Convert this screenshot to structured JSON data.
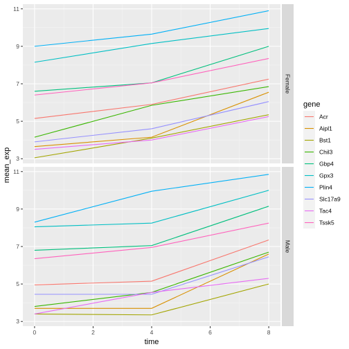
{
  "chart_data": {
    "type": "line",
    "xlabel": "time",
    "ylabel": "mean_exp",
    "xlim": [
      -0.4,
      8.4
    ],
    "ylim": [
      2.75,
      11.25
    ],
    "x_ticks": [
      0,
      2,
      4,
      6,
      8
    ],
    "y_ticks": [
      3,
      5,
      7,
      9,
      11
    ],
    "grid": true,
    "legend": {
      "title": "gene",
      "position": "right"
    },
    "series_colors": {
      "Acr": "#F8766D",
      "Aipl1": "#D89000",
      "Bst1": "#A3A500",
      "Chil3": "#39B600",
      "Gbp4": "#00BF7D",
      "Gpx3": "#00BFC4",
      "Plin4": "#00B0F6",
      "Slc17a9": "#9590FF",
      "Tac4": "#E76BF3",
      "Tssk5": "#FF62BC"
    },
    "facets": [
      {
        "label": "Female",
        "x": [
          0,
          4,
          8
        ],
        "series": [
          {
            "name": "Acr",
            "values": [
              5.15,
              5.9,
              7.25
            ]
          },
          {
            "name": "Aipl1",
            "values": [
              3.65,
              4.15,
              6.55
            ]
          },
          {
            "name": "Bst1",
            "values": [
              3.05,
              4.1,
              5.35
            ]
          },
          {
            "name": "Chil3",
            "values": [
              4.15,
              5.85,
              6.85
            ]
          },
          {
            "name": "Gbp4",
            "values": [
              6.6,
              7.05,
              9.0
            ]
          },
          {
            "name": "Gpx3",
            "values": [
              8.15,
              9.15,
              9.95
            ]
          },
          {
            "name": "Plin4",
            "values": [
              9.0,
              9.65,
              10.9
            ]
          },
          {
            "name": "Slc17a9",
            "values": [
              3.9,
              4.6,
              6.05
            ]
          },
          {
            "name": "Tac4",
            "values": [
              3.5,
              4.0,
              5.25
            ]
          },
          {
            "name": "Tssk5",
            "values": [
              6.4,
              7.05,
              8.35
            ]
          }
        ]
      },
      {
        "label": "Male",
        "x": [
          0,
          4,
          8
        ],
        "series": [
          {
            "name": "Acr",
            "values": [
              4.95,
              5.15,
              7.35
            ]
          },
          {
            "name": "Aipl1",
            "values": [
              3.7,
              3.7,
              6.6
            ]
          },
          {
            "name": "Bst1",
            "values": [
              3.4,
              3.35,
              5.0
            ]
          },
          {
            "name": "Chil3",
            "values": [
              3.8,
              4.55,
              6.7
            ]
          },
          {
            "name": "Gbp4",
            "values": [
              6.8,
              7.05,
              9.15
            ]
          },
          {
            "name": "Gpx3",
            "values": [
              8.05,
              8.25,
              10.0
            ]
          },
          {
            "name": "Plin4",
            "values": [
              8.3,
              9.95,
              10.85
            ]
          },
          {
            "name": "Slc17a9",
            "values": [
              4.45,
              4.45,
              6.45
            ]
          },
          {
            "name": "Tac4",
            "values": [
              3.4,
              4.55,
              5.3
            ]
          },
          {
            "name": "Tssk5",
            "values": [
              6.35,
              6.95,
              8.25
            ]
          }
        ]
      }
    ]
  }
}
